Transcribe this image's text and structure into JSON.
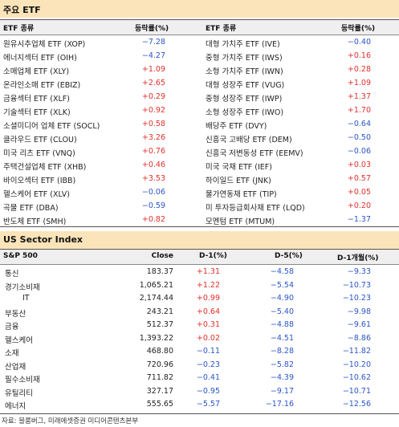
{
  "etf_section": {
    "title": "주요 ETF",
    "headers": {
      "name_left": "ETF 종류",
      "change_left": "등락률(%)",
      "name_right": "ETF 종류",
      "change_right": "등락률(%)"
    },
    "rows": [
      {
        "l_name": "원유시추업체 ETF (XOP)",
        "l_val": "-7.28",
        "r_name": "대형 가치주 ETF (IVE)",
        "r_val": "-0.40"
      },
      {
        "l_name": "에너지섹터 ETF (OIH)",
        "l_val": "-4.27",
        "r_name": "중형 가치주 ETF (IWS)",
        "r_val": "+0.16"
      },
      {
        "l_name": "소매업체 ETF (XLY)",
        "l_val": "+1.09",
        "r_name": "소형 가치주 ETF (IWN)",
        "r_val": "+0.28"
      },
      {
        "l_name": "온라인소매 ETF (EBIZ)",
        "l_val": "+2.65",
        "r_name": "대형 성장주 ETF (VUG)",
        "r_val": "+1.09"
      },
      {
        "l_name": "금융섹터 ETF (XLF)",
        "l_val": "+0.29",
        "r_name": "중형 성장주 ETF (IWP)",
        "r_val": "+1.37"
      },
      {
        "l_name": "기술섹터 ETF (XLK)",
        "l_val": "+0.92",
        "r_name": "소형 성장주 ETF (IWO)",
        "r_val": "+1.70"
      },
      {
        "l_name": "소셜미디어 업체 ETF (SOCL)",
        "l_val": "+0.58",
        "r_name": "배당주 ETF (DVY)",
        "r_val": "-0.64"
      },
      {
        "l_name": "클라우드 ETF (CLOU)",
        "l_val": "+3.26",
        "r_name": "신흥국 고배당 ETF (DEM)",
        "r_val": "-0.50"
      },
      {
        "l_name": "미국 리츠 ETF (VNQ)",
        "l_val": "+0.76",
        "r_name": "신흥국 저변동성 ETF (EEMV)",
        "r_val": "-0.06"
      },
      {
        "l_name": "주택건설업체 ETF (XHB)",
        "l_val": "+0.46",
        "r_name": "미국 국채 ETF (IEF)",
        "r_val": "+0.03"
      },
      {
        "l_name": "바이오섹터 ETF (IBB)",
        "l_val": "+3.53",
        "r_name": "하이일드 ETF (JNK)",
        "r_val": "+0.57"
      },
      {
        "l_name": "헬스케어 ETF (XLV)",
        "l_val": "-0.06",
        "r_name": "물가연동채 ETF (TIP)",
        "r_val": "+0.05"
      },
      {
        "l_name": "곡물 ETF (DBA)",
        "l_val": "-0.59",
        "r_name": "미 투자등급회사채 ETF (LQD)",
        "r_val": "+0.20"
      },
      {
        "l_name": "반도체 ETF (SMH)",
        "l_val": "+0.82",
        "r_name": "모멘텀 ETF (MTUM)",
        "r_val": "-1.37"
      }
    ]
  },
  "sector_section": {
    "title": "US Sector Index",
    "headers": {
      "name": "S&P 500",
      "close": "Close",
      "d1": "D-1(%)",
      "d5": "D-5(%)",
      "m1": "D-1개월(%)"
    },
    "rows": [
      {
        "name": "통신",
        "close": "183.37",
        "d1": "+1.31",
        "d5": "-4.58",
        "m1": "-9.33"
      },
      {
        "name": "경기소비재",
        "close": "1,065.21",
        "d1": "+1.22",
        "d5": "-5.54",
        "m1": "-10.73"
      },
      {
        "name": "IT",
        "close": "2,174.44",
        "d1": "+0.99",
        "d5": "-4.90",
        "m1": "-10.23"
      },
      {
        "name": "부동산",
        "close": "243.21",
        "d1": "+0.64",
        "d5": "-5.40",
        "m1": "-9.98"
      },
      {
        "name": "금융",
        "close": "512.37",
        "d1": "+0.31",
        "d5": "-4.88",
        "m1": "-9.61"
      },
      {
        "name": "헬스케어",
        "close": "1,393.22",
        "d1": "+0.02",
        "d5": "-4.51",
        "m1": "-8.86"
      },
      {
        "name": "소재",
        "close": "468.80",
        "d1": "-0.11",
        "d5": "-8.28",
        "m1": "-11.82"
      },
      {
        "name": "산업재",
        "close": "720.96",
        "d1": "-0.23",
        "d5": "-5.82",
        "m1": "-10.20"
      },
      {
        "name": "필수소비재",
        "close": "711.82",
        "d1": "-0.41",
        "d5": "-4.39",
        "m1": "-10.62"
      },
      {
        "name": "유틸리티",
        "close": "327.17",
        "d1": "-0.95",
        "d5": "-9.17",
        "m1": "-10.71"
      },
      {
        "name": "에너지",
        "close": "555.65",
        "d1": "-5.57",
        "d5": "-17.16",
        "m1": "-12.56"
      }
    ]
  },
  "source": "자료: 블룸버그, 미래에셋증권 미디어콘텐츠본부",
  "colors": {
    "positive": "#e0302a",
    "negative": "#2a55c8",
    "section_bg": "#fbe4b9",
    "header_bg": "#efefef"
  }
}
